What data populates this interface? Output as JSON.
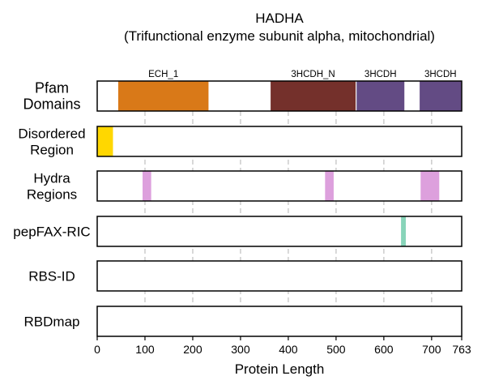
{
  "chart_data": {
    "type": "protein-feature-tracks",
    "title": "HADHA",
    "subtitle": "(Trifunctional enzyme subunit alpha, mitochondrial)",
    "xlabel": "Protein Length",
    "xlim": [
      0,
      763
    ],
    "xticks": [
      0,
      100,
      200,
      300,
      400,
      500,
      600,
      700,
      763
    ],
    "gridlines": [
      100,
      200,
      300,
      400,
      500,
      600,
      700
    ],
    "grid": "dashed vertical",
    "tracks": [
      {
        "id": "pfam",
        "label": [
          "Pfam",
          "Domains"
        ],
        "features": [
          {
            "name": "ECH_1",
            "start": 44,
            "end": 233,
            "color": "#D97918"
          },
          {
            "name": "3HCDH_N",
            "start": 363,
            "end": 541,
            "color": "#74302B"
          },
          {
            "name": "3HCDH",
            "start": 543,
            "end": 643,
            "color": "#634B84"
          },
          {
            "name": "3HCDH",
            "start": 675,
            "end": 762,
            "color": "#634B84"
          }
        ]
      },
      {
        "id": "disordered",
        "label": [
          "Disordered",
          "Region"
        ],
        "features": [
          {
            "start": 0,
            "end": 33,
            "color": "#FFD700"
          }
        ]
      },
      {
        "id": "hydra",
        "label": [
          "Hydra",
          "Regions"
        ],
        "features": [
          {
            "start": 95,
            "end": 113,
            "color": "#DDA0DD"
          },
          {
            "start": 477,
            "end": 495,
            "color": "#DDA0DD"
          },
          {
            "start": 677,
            "end": 716,
            "color": "#DDA0DD"
          }
        ]
      },
      {
        "id": "pepfax",
        "label": [
          "pepFAX-RIC"
        ],
        "features": [
          {
            "start": 636,
            "end": 646,
            "color": "#88D4B9"
          }
        ]
      },
      {
        "id": "rbsid",
        "label": [
          "RBS-ID"
        ],
        "features": []
      },
      {
        "id": "rbdmap",
        "label": [
          "RBDmap"
        ],
        "features": []
      }
    ]
  }
}
